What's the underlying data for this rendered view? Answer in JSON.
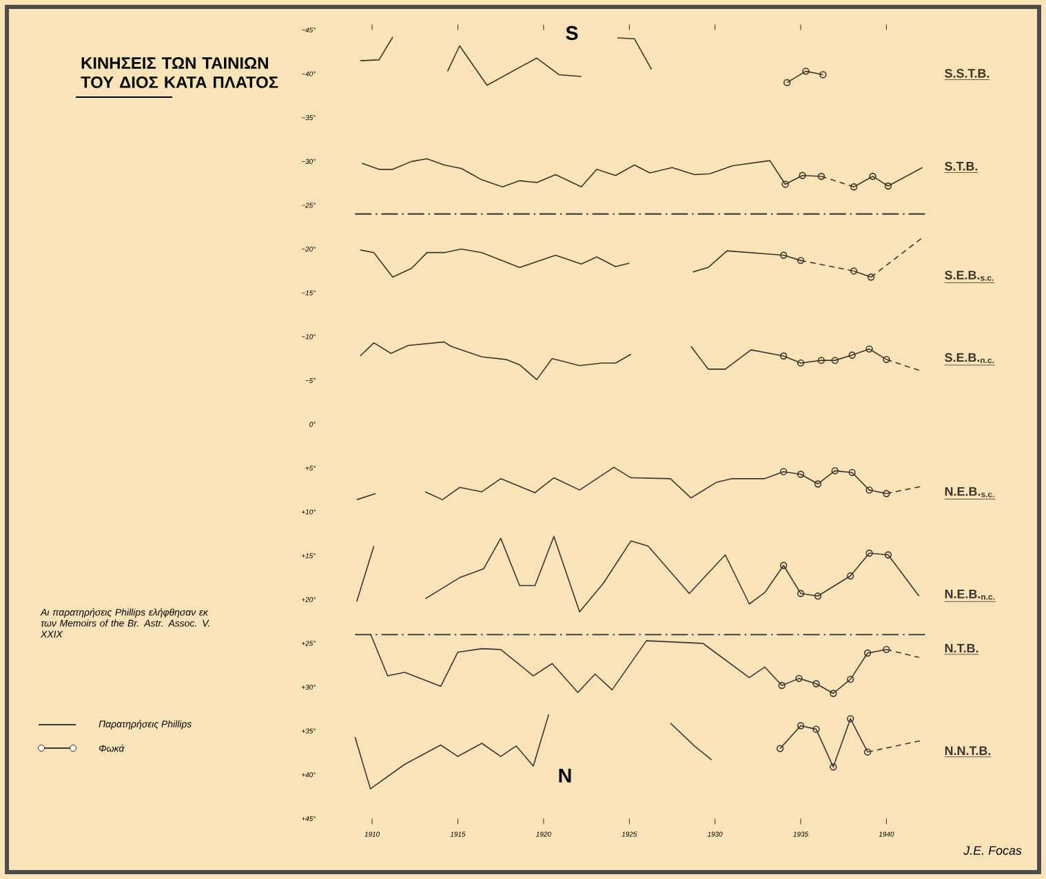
{
  "chart_data": {
    "type": "line",
    "title": "ΚΙΝΗΣΕΙΣ ΤΩΝ ΤΑΙΝΙΩΝ ΤΟΥ ΔΙΟΣ ΚΑΤΑ ΠΛΑΤΟΣ",
    "annotations": [
      "S",
      "N",
      "Παρατηρήσεις Phillips",
      "Φωκά",
      "Αι παρατηρήσεις Phillips ελήφθησαν εκ των Memoirs of the Br. Astr. Assoc. V. XXIX",
      "J.E. Focas"
    ],
    "xlim": [
      1909,
      1942.5
    ],
    "xticks": [
      1910,
      1915,
      1920,
      1925,
      1930,
      1935,
      1940
    ],
    "ylim": [
      45,
      -45
    ],
    "yticks": [
      {
        "value": -45,
        "label": "−45°"
      },
      {
        "value": -40,
        "label": "−40°"
      },
      {
        "value": -35,
        "label": "−35°"
      },
      {
        "value": -30,
        "label": "−30°"
      },
      {
        "value": -25,
        "label": "−25°"
      },
      {
        "value": -20,
        "label": "−20°"
      },
      {
        "value": -15,
        "label": "−15°"
      },
      {
        "value": -10,
        "label": "−10°"
      },
      {
        "value": -5,
        "label": "−5°"
      },
      {
        "value": 0,
        "label": "0°"
      },
      {
        "value": 5,
        "label": "+5°"
      },
      {
        "value": 10,
        "label": "+10°"
      },
      {
        "value": 15,
        "label": "+15°"
      },
      {
        "value": 20,
        "label": "+20°"
      },
      {
        "value": 25,
        "label": "+25°"
      },
      {
        "value": 30,
        "label": "+30°"
      },
      {
        "value": 35,
        "label": "+35°"
      },
      {
        "value": 40,
        "label": "+40°"
      },
      {
        "value": 45,
        "label": "+45°"
      }
    ],
    "ref_lines": [
      {
        "axis": "y",
        "value": -24,
        "line_style": "dashdot"
      },
      {
        "axis": "y",
        "value": 24,
        "line_style": "dashdot"
      }
    ],
    "marker": "none",
    "line_style": "solid",
    "grid": false,
    "series": [
      {
        "name": "S.S.T.B.",
        "color": "#3b3420",
        "x": [
          1909.3,
          1910.4,
          1911.2,
          1913,
          1914.4,
          1915.1,
          1916.7,
          1919.6,
          1920.9,
          1922.2,
          1923.5,
          1924.3,
          1925.3,
          1926.3,
          1930,
          1934.2,
          1935.3,
          1936.3
        ],
        "values": [
          -41.5,
          -41.6,
          -44.2,
          null,
          -40.3,
          -43.2,
          -38.7,
          -41.8,
          -39.9,
          -39.7,
          null,
          -44.1,
          -44.0,
          -40.5,
          null,
          -39.0,
          -40.3,
          -39.9
        ]
      },
      {
        "type": "scatter",
        "color": "#3b3421",
        "marker": "circle",
        "x": [
          1934.2,
          1935.3,
          1936.3
        ],
        "values": [
          -39.0,
          -40.3,
          -39.9
        ]
      },
      {
        "name": "S.T.B.",
        "color": "#3b3422",
        "x": [
          1909.4,
          1910.4,
          1911.2,
          1912.3,
          1913.2,
          1914.2,
          1915.2,
          1916.4,
          1917.6,
          1918.6,
          1919.6,
          1920.7,
          1922.2,
          1923.1,
          1924.2,
          1925.3,
          1926.2,
          1927.5,
          1928.8,
          1929.7,
          1931.0,
          1933.2,
          1934.1,
          1935.1,
          1936.2,
          1937,
          1938.1,
          1939.2,
          1940.1,
          1942.1
        ],
        "values": [
          -29.8,
          -29.1,
          -29.1,
          -30.0,
          -30.3,
          -29.6,
          -29.2,
          -27.9,
          -27.1,
          -27.8,
          -27.6,
          -28.5,
          -27.1,
          -29.1,
          -28.4,
          -29.6,
          -28.7,
          -29.3,
          -28.5,
          -28.6,
          -29.5,
          -30.1,
          -27.4,
          -28.4,
          -28.3,
          null,
          -27.1,
          -28.3,
          -27.2,
          -29.3
        ]
      },
      {
        "type": "scatter",
        "color": "#3b3423",
        "marker": "circle",
        "x": [
          1934.1,
          1935.1,
          1936.2,
          1938.1,
          1939.2,
          1940.1
        ],
        "values": [
          -27.4,
          -28.4,
          -28.3,
          -27.1,
          -28.3,
          -27.2
        ]
      },
      {
        "color": "#3b3424",
        "line_style": "dashed",
        "x": [
          1936.2,
          1938.1
        ],
        "values": [
          -28.3,
          -27.1
        ]
      },
      {
        "name": "S.E.B.$_{s.c.}$",
        "color": "#3b3425",
        "x": [
          1909.3,
          1910.1,
          1911.2,
          1912.3,
          1913.2,
          1914.2,
          1915.2,
          1916.4,
          1918.6,
          1920.7,
          1922.2,
          1923.1,
          1924.2,
          1925.0,
          1927,
          1928.7,
          1929.6,
          1930.7,
          1934.0,
          1935.0,
          1936.5,
          1938.1,
          1939.1
        ],
        "values": [
          -19.9,
          -19.6,
          -16.8,
          -17.8,
          -19.6,
          -19.6,
          -20.0,
          -19.6,
          -17.9,
          -19.3,
          -18.3,
          -19.1,
          -18.0,
          -18.4,
          null,
          -17.4,
          -17.9,
          -19.8,
          -19.3,
          -18.7,
          null,
          -17.5,
          -16.8
        ]
      },
      {
        "type": "scatter",
        "color": "#3b3426",
        "marker": "circle",
        "x": [
          1934.0,
          1935.0,
          1938.1,
          1939.1
        ],
        "values": [
          -19.3,
          -18.7,
          -17.5,
          -16.8
        ]
      },
      {
        "color": "#3b3427",
        "line_style": "dashed",
        "x": [
          1935.0,
          1938.1,
          1938.6,
          1939.1,
          1942.1
        ],
        "values": [
          -18.7,
          -17.5,
          null,
          -16.8,
          -21.3
        ]
      },
      {
        "name": "S.E.B.$_{n.c.}$",
        "color": "#3b3428",
        "x": [
          1909.3,
          1910.1,
          1911.1,
          1912.1,
          1914.2,
          1914.6,
          1916.4,
          1917.8,
          1918.6,
          1919.6,
          1920.5,
          1922.1,
          1923.4,
          1924.2,
          1925.1,
          1927,
          1928.6,
          1929.6,
          1930.6,
          1932.1,
          1934.0,
          1935.0,
          1936.2,
          1937.0,
          1938.0,
          1939.0,
          1940.0
        ],
        "values": [
          -7.8,
          -9.3,
          -8.1,
          -9.0,
          -9.4,
          -8.9,
          -7.7,
          -7.4,
          -6.8,
          -5.1,
          -7.5,
          -6.7,
          -7.0,
          -7.0,
          -8.0,
          null,
          -8.9,
          -6.3,
          -6.3,
          -8.5,
          -7.8,
          -7.0,
          -7.3,
          -7.3,
          -7.9,
          -8.6,
          -7.4
        ]
      },
      {
        "type": "scatter",
        "color": "#3b3429",
        "marker": "circle",
        "x": [
          1934.0,
          1935.0,
          1936.2,
          1937.0,
          1938.0,
          1939.0,
          1940.0
        ],
        "values": [
          -7.8,
          -7.0,
          -7.3,
          -7.3,
          -7.9,
          -8.6,
          -7.4
        ]
      },
      {
        "color": "#3b342a",
        "line_style": "dashed",
        "x": [
          1940.0,
          1942.0
        ],
        "values": [
          -7.4,
          -6.1
        ]
      },
      {
        "name": "N.E.B.$_{s.c.}$",
        "color": "#3b342b",
        "x": [
          1909.1,
          1910.2,
          1911.6,
          1913.1,
          1914.1,
          1915.1,
          1916.4,
          1917.5,
          1919.5,
          1920.6,
          1922.1,
          1924.1,
          1925.1,
          1927.4,
          1928.6,
          1930.1,
          1931.0,
          1932.9,
          1934.0,
          1935.0,
          1936.0,
          1937.0,
          1938.0,
          1939.0,
          1940.0
        ],
        "values": [
          8.6,
          7.9,
          null,
          7.7,
          8.6,
          7.2,
          7.7,
          6.2,
          7.8,
          6.1,
          7.5,
          4.9,
          6.1,
          6.2,
          8.4,
          6.6,
          6.2,
          6.2,
          5.4,
          5.7,
          6.8,
          5.3,
          5.5,
          7.5,
          7.9
        ]
      },
      {
        "type": "scatter",
        "color": "#3b342c",
        "marker": "circle",
        "x": [
          1934.0,
          1935.0,
          1936.0,
          1937.0,
          1938.0,
          1939.0,
          1940.0
        ],
        "values": [
          5.4,
          5.7,
          6.8,
          5.3,
          5.5,
          7.5,
          7.9
        ]
      },
      {
        "color": "#3b342d",
        "line_style": "dashed",
        "x": [
          1940.0,
          1942.0
        ],
        "values": [
          7.9,
          7.1
        ]
      },
      {
        "name": "N.E.B.$_{n.c.}$",
        "color": "#3b342e",
        "x": [
          1909.1,
          1910.1,
          1911.6,
          1913.1,
          1915.1,
          1916.5,
          1917.5,
          1918.6,
          1919.5,
          1920.6,
          1922.1,
          1923.5,
          1925.1,
          1926.1,
          1928.5,
          1930.6,
          1932.0,
          1932.9,
          1934.0,
          1935.0,
          1936.0,
          1937.9,
          1939.0,
          1940.1,
          1941.9
        ],
        "values": [
          20.2,
          13.9,
          null,
          19.9,
          17.5,
          16.5,
          13.0,
          18.4,
          18.4,
          12.8,
          21.4,
          18.1,
          13.3,
          13.9,
          19.3,
          14.9,
          20.5,
          19.2,
          16.1,
          19.3,
          19.6,
          17.3,
          14.7,
          14.9,
          19.6
        ]
      },
      {
        "type": "scatter",
        "color": "#3b342f",
        "marker": "circle",
        "x": [
          1934.0,
          1935.0,
          1936.0,
          1937.9,
          1939.0,
          1940.1
        ],
        "values": [
          16.1,
          19.3,
          19.6,
          17.3,
          14.7,
          14.9
        ]
      },
      {
        "name": "N.T.B.",
        "color": "#3b3430",
        "x": [
          1909.9,
          1910.9,
          1911.9,
          1914.0,
          1915.0,
          1916.4,
          1917.5,
          1919.4,
          1920.5,
          1922.0,
          1923.0,
          1924.0,
          1926.0,
          1929.3,
          1932.0,
          1932.9,
          1933.9,
          1934.9,
          1935.9,
          1936.9,
          1937.9,
          1938.9,
          1940.0
        ],
        "values": [
          23.9,
          28.7,
          28.3,
          29.9,
          26.0,
          25.6,
          25.7,
          28.7,
          27.3,
          30.6,
          28.5,
          30.3,
          24.7,
          25.0,
          28.9,
          27.7,
          29.8,
          29.0,
          29.6,
          30.7,
          29.1,
          26.1,
          25.7
        ]
      },
      {
        "type": "scatter",
        "color": "#3b3431",
        "marker": "circle",
        "x": [
          1933.9,
          1934.9,
          1935.9,
          1936.9,
          1937.9,
          1938.9,
          1940.0
        ],
        "values": [
          29.8,
          29.0,
          29.6,
          30.7,
          29.1,
          26.1,
          25.7
        ]
      },
      {
        "color": "#3b3432",
        "line_style": "dashed",
        "x": [
          1940.0,
          1941.9
        ],
        "values": [
          25.7,
          26.6
        ]
      },
      {
        "name": "N.N.T.B.",
        "color": "#3b3433",
        "x": [
          1909.0,
          1909.9,
          1911.9,
          1914.0,
          1915.0,
          1916.4,
          1917.5,
          1918.4,
          1919.4,
          1920.3,
          1924,
          1927.4,
          1928.8,
          1929.8,
          1932,
          1933.8,
          1935.0,
          1935.9,
          1936.9,
          1937.9,
          1938.9
        ],
        "values": [
          35.7,
          41.6,
          38.8,
          36.6,
          37.9,
          36.4,
          37.9,
          36.7,
          39.0,
          33.1,
          null,
          34.1,
          36.7,
          38.3,
          null,
          37.0,
          34.4,
          34.8,
          39.1,
          33.6,
          37.4
        ]
      },
      {
        "type": "scatter",
        "color": "#3b3434",
        "marker": "circle",
        "x": [
          1933.8,
          1935.0,
          1935.9,
          1936.9,
          1937.9,
          1938.9
        ],
        "values": [
          37.0,
          34.4,
          34.8,
          39.1,
          33.6,
          37.4
        ]
      },
      {
        "color": "#3b3435",
        "line_style": "dashed",
        "x": [
          1938.9,
          1942.0
        ],
        "values": [
          37.4,
          36.1
        ]
      }
    ]
  }
}
